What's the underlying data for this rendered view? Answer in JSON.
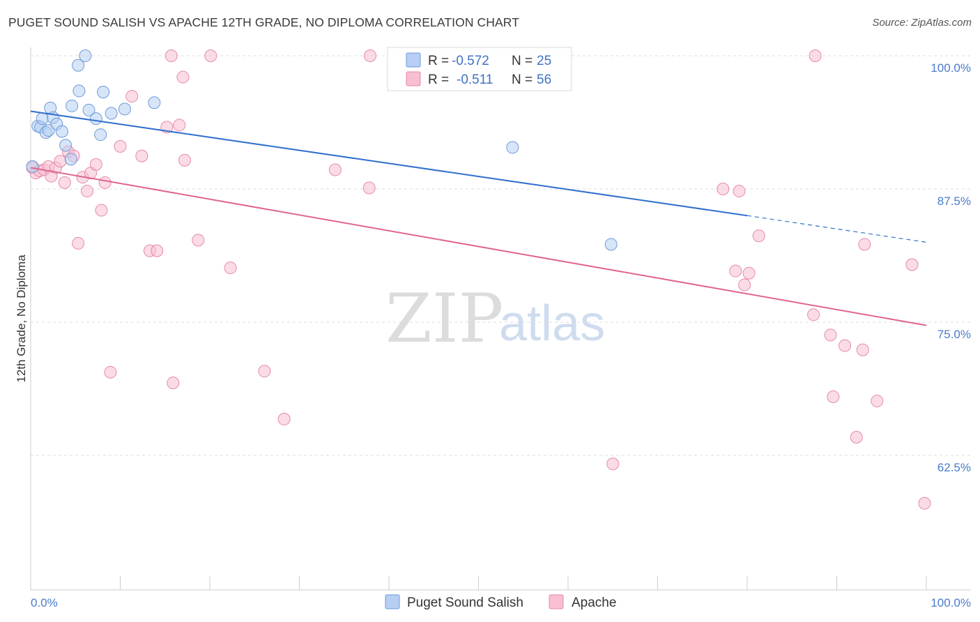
{
  "title": "PUGET SOUND SALISH VS APACHE 12TH GRADE, NO DIPLOMA CORRELATION CHART",
  "source": "Source: ZipAtlas.com",
  "watermark": {
    "part1": "ZIP",
    "part2": "atlas"
  },
  "colors": {
    "blue_fill": "#b6cff2",
    "blue_stroke": "#6f9ad8",
    "blue_line": "#2f6fce",
    "pink_fill": "#f7bfd1",
    "pink_stroke": "#e58aa9",
    "pink_line": "#e0658e",
    "tick_label": "#4a7cc9",
    "grid": "#dddddd"
  },
  "legend": {
    "r_label": "R =",
    "n_label": "N =",
    "rows": [
      {
        "r": "-0.572",
        "n": "25"
      },
      {
        "r": "-0.511",
        "n": "56"
      }
    ]
  },
  "chart_data": {
    "type": "scatter",
    "title": "PUGET SOUND SALISH VS APACHE 12TH GRADE, NO DIPLOMA CORRELATION CHART",
    "xlabel": "",
    "ylabel": "12th Grade, No Diploma",
    "xlim": [
      0,
      100
    ],
    "ylim": [
      52.5,
      101.5
    ],
    "x_tick_labels": [
      {
        "value": 0,
        "label": "0.0%"
      },
      {
        "value": 100,
        "label": "100.0%"
      }
    ],
    "y_ticks": [
      {
        "value": 100,
        "label": "100.0%"
      },
      {
        "value": 87.5,
        "label": "87.5%"
      },
      {
        "value": 75,
        "label": "75.0%"
      },
      {
        "value": 62.5,
        "label": "62.5%"
      }
    ],
    "grid": "horizontal dashed",
    "legend_position": "top-center",
    "series": [
      {
        "name": "Puget Sound Salish",
        "r": -0.572,
        "n": 25,
        "trend": {
          "x0": 0,
          "y0": 94.8,
          "x1": 80,
          "y1": 85.0,
          "dashed_to_x": 100,
          "dashed_to_y": 82.5
        },
        "points": [
          [
            0.2,
            89.6
          ],
          [
            0.8,
            93.4
          ],
          [
            1.1,
            93.3
          ],
          [
            1.3,
            94.1
          ],
          [
            1.7,
            92.8
          ],
          [
            2.0,
            93.0
          ],
          [
            2.2,
            95.1
          ],
          [
            2.5,
            94.2
          ],
          [
            2.9,
            93.6
          ],
          [
            3.5,
            92.9
          ],
          [
            3.9,
            91.6
          ],
          [
            4.5,
            90.3
          ],
          [
            4.6,
            95.3
          ],
          [
            5.3,
            99.1
          ],
          [
            5.4,
            96.7
          ],
          [
            6.1,
            100.0
          ],
          [
            6.5,
            94.9
          ],
          [
            7.3,
            94.1
          ],
          [
            7.8,
            92.6
          ],
          [
            8.1,
            96.6
          ],
          [
            9.0,
            94.6
          ],
          [
            10.5,
            95.0
          ],
          [
            13.8,
            95.6
          ],
          [
            53.8,
            91.4
          ],
          [
            64.8,
            82.3
          ]
        ]
      },
      {
        "name": "Apache",
        "r": -0.511,
        "n": 56,
        "trend": {
          "x0": 0,
          "y0": 89.5,
          "x1": 100,
          "y1": 74.7
        },
        "points": [
          [
            0.2,
            89.5
          ],
          [
            0.6,
            89.0
          ],
          [
            1.0,
            89.2
          ],
          [
            1.5,
            89.3
          ],
          [
            2.0,
            89.6
          ],
          [
            2.3,
            88.7
          ],
          [
            2.8,
            89.5
          ],
          [
            3.3,
            90.1
          ],
          [
            3.8,
            88.1
          ],
          [
            4.2,
            91.0
          ],
          [
            4.8,
            90.6
          ],
          [
            5.3,
            82.4
          ],
          [
            5.8,
            88.6
          ],
          [
            6.3,
            87.3
          ],
          [
            6.7,
            89.0
          ],
          [
            7.3,
            89.8
          ],
          [
            7.9,
            85.5
          ],
          [
            8.3,
            88.1
          ],
          [
            8.9,
            70.3
          ],
          [
            10.0,
            91.5
          ],
          [
            11.3,
            96.2
          ],
          [
            12.4,
            90.6
          ],
          [
            13.3,
            81.7
          ],
          [
            14.1,
            81.7
          ],
          [
            15.2,
            93.3
          ],
          [
            15.7,
            100.0
          ],
          [
            15.9,
            69.3
          ],
          [
            16.6,
            93.5
          ],
          [
            17.0,
            98.0
          ],
          [
            17.2,
            90.2
          ],
          [
            18.7,
            82.7
          ],
          [
            20.1,
            100.0
          ],
          [
            22.3,
            80.1
          ],
          [
            26.1,
            70.4
          ],
          [
            28.3,
            65.9
          ],
          [
            34.0,
            89.3
          ],
          [
            37.8,
            87.6
          ],
          [
            37.9,
            100.0
          ],
          [
            65.0,
            61.7
          ],
          [
            77.3,
            87.5
          ],
          [
            78.7,
            79.8
          ],
          [
            79.1,
            87.3
          ],
          [
            79.7,
            78.5
          ],
          [
            80.2,
            79.6
          ],
          [
            81.3,
            83.1
          ],
          [
            87.6,
            100.0
          ],
          [
            87.4,
            75.7
          ],
          [
            89.3,
            73.8
          ],
          [
            89.6,
            68.0
          ],
          [
            90.9,
            72.8
          ],
          [
            92.2,
            64.2
          ],
          [
            92.9,
            72.4
          ],
          [
            93.1,
            82.3
          ],
          [
            94.5,
            67.6
          ],
          [
            98.4,
            80.4
          ],
          [
            99.8,
            58.0
          ]
        ]
      }
    ]
  }
}
